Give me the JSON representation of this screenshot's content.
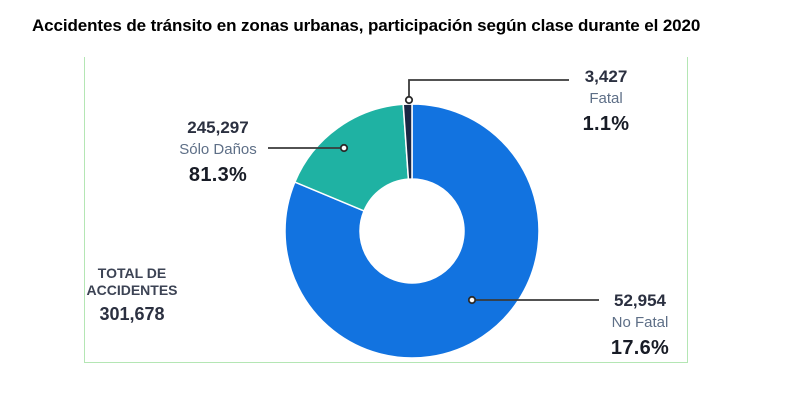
{
  "page": {
    "title": "Accidentes de tránsito en zonas urbanas, participación según clase durante el 2020"
  },
  "chart_data": {
    "type": "pie",
    "subtype": "donut",
    "title": "Accidentes de tránsito en zonas urbanas, participación según clase durante el 2020",
    "legend_position": "none",
    "total": {
      "label_line1": "TOTAL DE",
      "label_line2": "ACCIDENTES",
      "value": "301,678"
    },
    "slices": [
      {
        "name": "Sólo Daños",
        "value": 245297,
        "value_label": "245,297",
        "pct": 81.3,
        "pct_label": "81.3%"
      },
      {
        "name": "No Fatal",
        "value": 52954,
        "value_label": "52,954",
        "pct": 17.6,
        "pct_label": "17.6%"
      },
      {
        "name": "Fatal",
        "value": 3427,
        "value_label": "3,427",
        "pct": 1.1,
        "pct_label": "1.1%"
      }
    ],
    "arcs_clockwise_from_top": [
      {
        "color": "#1273e0",
        "pct": 81.3
      },
      {
        "color": "#1fb2a3",
        "pct": 17.6
      },
      {
        "color": "#1a2744",
        "pct": 1.1
      }
    ],
    "callouts": {
      "fatal": {
        "value": "3,427",
        "name": "Fatal",
        "pct": "1.1%"
      },
      "solo": {
        "value": "245,297",
        "name": "Sólo Daños",
        "pct": "81.3%"
      },
      "no_fatal": {
        "value": "52,954",
        "name": "No Fatal",
        "pct": "17.6%"
      }
    },
    "colors": {
      "blue": "#1273e0",
      "teal": "#1fb2a3",
      "navy": "#1a2744",
      "panel_border": "#b4e6b4",
      "leader_line": "#3a3a3a"
    }
  }
}
